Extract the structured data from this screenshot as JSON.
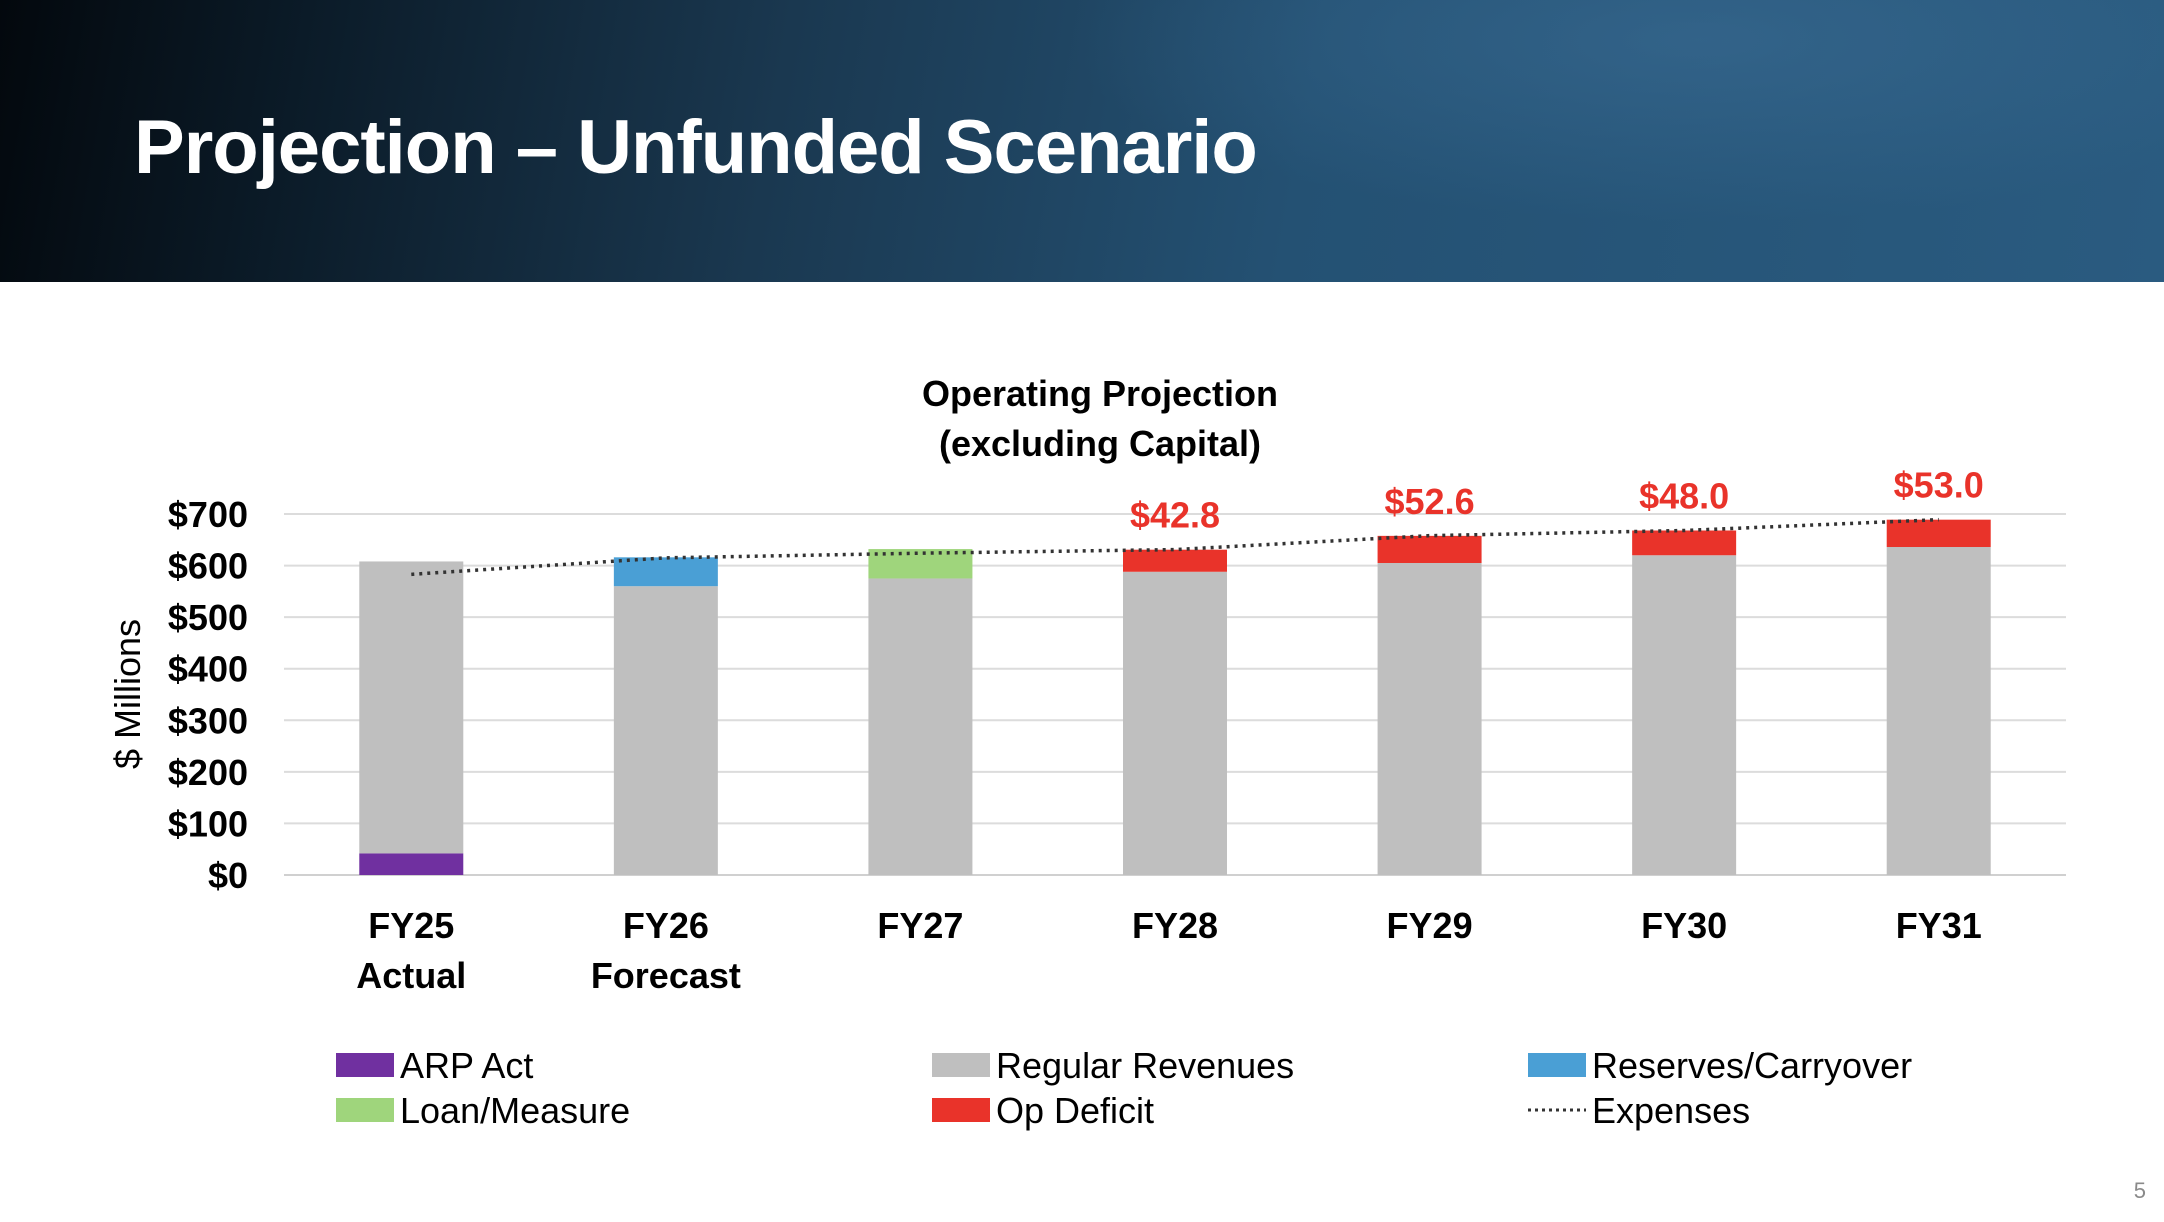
{
  "slide": {
    "title": "Projection – Unfunded Scenario",
    "page_number": "5"
  },
  "chart_data": {
    "type": "bar",
    "stacked": true,
    "title_lines": [
      "Operating Projection",
      "(excluding Capital)"
    ],
    "ylabel": "$ Millions",
    "xlabel": "",
    "ylim": [
      0,
      700
    ],
    "y_ticks": [
      0,
      100,
      200,
      300,
      400,
      500,
      600,
      700
    ],
    "y_tick_labels": [
      "$0",
      "$100",
      "$200",
      "$300",
      "$400",
      "$500",
      "$600",
      "$700"
    ],
    "grid": true,
    "legend_position": "bottom",
    "categories": [
      [
        "FY25",
        "Actual"
      ],
      [
        "FY26",
        "Forecast"
      ],
      [
        "FY27"
      ],
      [
        "FY28"
      ],
      [
        "FY29"
      ],
      [
        "FY30"
      ],
      [
        "FY31"
      ]
    ],
    "series": [
      {
        "name": "ARP Act",
        "color": "#7030a0",
        "values": [
          42,
          0,
          0,
          0,
          0,
          0,
          0
        ]
      },
      {
        "name": "Regular Revenues",
        "color": "#bfbfbf",
        "values": [
          566,
          560,
          575,
          588,
          605,
          620,
          636
        ]
      },
      {
        "name": "Reserves/Carryover",
        "color": "#4a9fd5",
        "values": [
          0,
          56,
          0,
          0,
          0,
          0,
          0
        ]
      },
      {
        "name": "Loan/Measure",
        "color": "#9fd57c",
        "values": [
          0,
          0,
          57,
          0,
          0,
          0,
          0
        ]
      },
      {
        "name": "Op Deficit",
        "color": "#e9332a",
        "values": [
          0,
          0,
          0,
          42.8,
          52.6,
          48.0,
          53.0
        ]
      }
    ],
    "expenses": {
      "name": "Expenses",
      "color": "#333333",
      "values": [
        583,
        615,
        624,
        631,
        658,
        668,
        689
      ]
    },
    "deficit_labels": [
      "",
      "",
      "",
      "$42.8",
      "$52.6",
      "$48.0",
      "$53.0"
    ],
    "deficit_label_color": "#e9332a",
    "legend": [
      {
        "name": "ARP Act",
        "color": "#7030a0",
        "type": "box"
      },
      {
        "name": "Regular Revenues",
        "color": "#bfbfbf",
        "type": "box"
      },
      {
        "name": "Reserves/Carryover",
        "color": "#4a9fd5",
        "type": "box"
      },
      {
        "name": "Loan/Measure",
        "color": "#9fd57c",
        "type": "box"
      },
      {
        "name": "Op Deficit",
        "color": "#e9332a",
        "type": "box"
      },
      {
        "name": "Expenses",
        "color": "#333333",
        "type": "dotted"
      }
    ]
  }
}
